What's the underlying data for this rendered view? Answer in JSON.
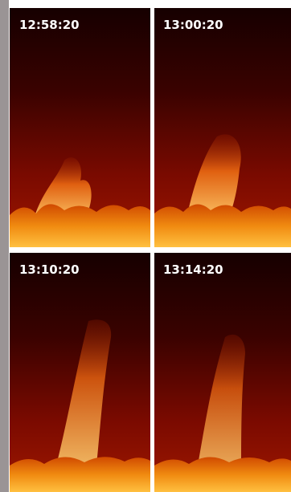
{
  "panels": [
    {
      "time": "12:58:20"
    },
    {
      "time": "13:00:20"
    },
    {
      "time": "13:10:20"
    },
    {
      "time": "13:14:20"
    }
  ]
}
